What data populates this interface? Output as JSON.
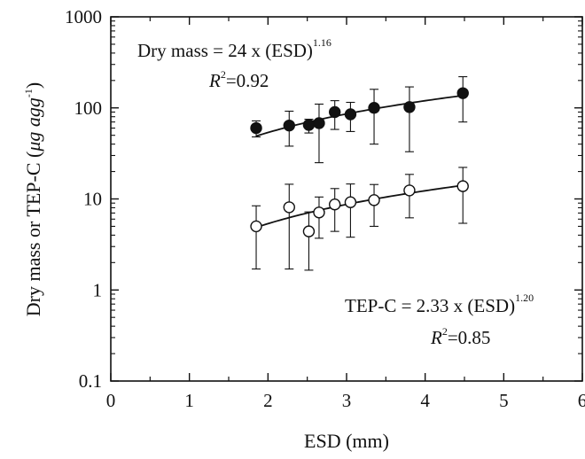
{
  "chart_data": {
    "type": "scatter",
    "x_label": "ESD (mm)",
    "y_label": "Dry mass or TEP-C (",
    "y_label_unit": "μg agg",
    "y_label_exp": "-1",
    "y_label_close": ")",
    "x_range": [
      0,
      6
    ],
    "y_range": [
      0.1,
      1000
    ],
    "y_scale": "log",
    "x_ticks": [
      0,
      1,
      2,
      3,
      4,
      5,
      6
    ],
    "x_tick_labels": [
      "0",
      "1",
      "2",
      "3",
      "4",
      "5",
      "6"
    ],
    "y_ticks": [
      0.1,
      1,
      10,
      100,
      1000
    ],
    "y_tick_labels": [
      "0.1",
      "1",
      "10",
      "100",
      "1000"
    ],
    "grid": false,
    "series": [
      {
        "marker": "filled-circle",
        "color": "#111111",
        "points": [
          {
            "x": 1.85,
            "y": 60,
            "lo": 48,
            "hi": 72
          },
          {
            "x": 2.27,
            "y": 64,
            "lo": 38,
            "hi": 92
          },
          {
            "x": 2.52,
            "y": 65,
            "lo": 53,
            "hi": 75
          },
          {
            "x": 2.65,
            "y": 68,
            "lo": 25,
            "hi": 110
          },
          {
            "x": 2.85,
            "y": 90,
            "lo": 58,
            "hi": 120
          },
          {
            "x": 3.05,
            "y": 85,
            "lo": 55,
            "hi": 115
          },
          {
            "x": 3.35,
            "y": 100,
            "lo": 40,
            "hi": 160
          },
          {
            "x": 3.8,
            "y": 102,
            "lo": 33,
            "hi": 170
          },
          {
            "x": 4.48,
            "y": 145,
            "lo": 70,
            "hi": 220
          }
        ],
        "fit": {
          "a": 24,
          "b": 1.16,
          "x_from": 1.85,
          "x_to": 4.48
        }
      },
      {
        "marker": "open-circle",
        "color": "#111111",
        "points": [
          {
            "x": 1.85,
            "y": 5.0,
            "lo": 1.7,
            "hi": 8.4
          },
          {
            "x": 2.27,
            "y": 8.1,
            "lo": 1.7,
            "hi": 14.5
          },
          {
            "x": 2.52,
            "y": 4.4,
            "lo": 1.65,
            "hi": 7.2
          },
          {
            "x": 2.65,
            "y": 7.1,
            "lo": 3.7,
            "hi": 10.5
          },
          {
            "x": 2.85,
            "y": 8.7,
            "lo": 4.4,
            "hi": 13
          },
          {
            "x": 3.05,
            "y": 9.2,
            "lo": 3.8,
            "hi": 14.6
          },
          {
            "x": 3.35,
            "y": 9.7,
            "lo": 5.0,
            "hi": 14.4
          },
          {
            "x": 3.8,
            "y": 12.4,
            "lo": 6.2,
            "hi": 18.6
          },
          {
            "x": 4.48,
            "y": 13.8,
            "lo": 5.4,
            "hi": 22.2
          }
        ],
        "fit": {
          "a": 2.33,
          "b": 1.2,
          "x_from": 1.85,
          "x_to": 4.48
        }
      }
    ],
    "annotations": {
      "dry": {
        "main": "Dry mass = 24 x (ESD)",
        "exp": "1.16",
        "r_letter": "R",
        "r_exp": "2",
        "r_value": "=0.92"
      },
      "tep": {
        "main": "TEP-C = 2.33 x (ESD)",
        "exp": "1.20",
        "r_letter": "R",
        "r_exp": "2",
        "r_value": "=0.85"
      }
    }
  }
}
